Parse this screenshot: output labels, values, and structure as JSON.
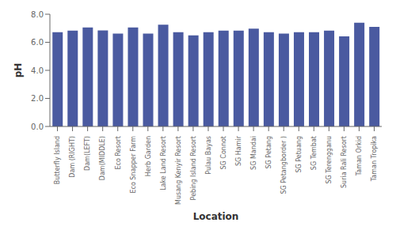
{
  "chart_data": {
    "type": "bar",
    "categories": [
      "Butterfly Island",
      "Dam (RIGHT)",
      "Dam(LEFT)",
      "Dam(MIDDLE)",
      "Eco Resort",
      "Eco Snapper Farm",
      "Herb Garden",
      "Lake Land Resort",
      "Musang Kenyir Resort",
      "Pebing Island Resort",
      "Pulau Bayas",
      "SG Connot",
      "SG Hamir",
      "SG Mandai",
      "SG Petang",
      "SG Petangborder )",
      "SG Petuang",
      "SG Tembat",
      "SG Terengganu",
      "Suria Rali Resort",
      "Taman Orkid",
      "Taman Tropika"
    ],
    "values": [
      6.72,
      6.83,
      7.05,
      6.85,
      6.62,
      7.05,
      6.62,
      7.25,
      6.72,
      6.5,
      6.72,
      6.83,
      6.83,
      6.97,
      6.72,
      6.62,
      6.72,
      6.72,
      6.83,
      6.42,
      7.4,
      7.1
    ],
    "color": "#4a5aa0",
    "xlabel": "Location",
    "ylabel": "pH",
    "ylim": [
      0.0,
      8.0
    ],
    "yticks": [
      {
        "value": 0,
        "label": "0.0"
      },
      {
        "value": 2,
        "label": "2.0"
      },
      {
        "value": 4,
        "label": "4.0"
      },
      {
        "value": 6,
        "label": "6.0"
      },
      {
        "value": 8,
        "label": "8.0"
      }
    ]
  }
}
